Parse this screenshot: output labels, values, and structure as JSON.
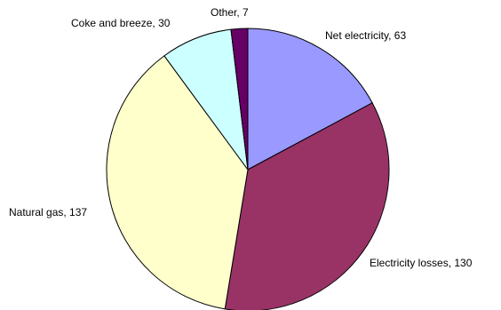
{
  "chart_data": {
    "type": "pie",
    "title": "",
    "slices": [
      {
        "label": "Net electricity",
        "value": 63,
        "color": "#9999FF",
        "display": "Net electricity, 63"
      },
      {
        "label": "Electricity losses",
        "value": 130,
        "color": "#993366",
        "display": "Electricity losses, 130"
      },
      {
        "label": "Natural gas",
        "value": 137,
        "color": "#FFFFCC",
        "display": "Natural gas, 137"
      },
      {
        "label": "Coke and breeze",
        "value": 30,
        "color": "#CCFFFF",
        "display": "Coke and breeze, 30"
      },
      {
        "label": "Other",
        "value": 7,
        "color": "#660066",
        "display": "Other, 7"
      }
    ],
    "start_angle": "12 o'clock",
    "direction": "clockwise",
    "legend": "none"
  }
}
